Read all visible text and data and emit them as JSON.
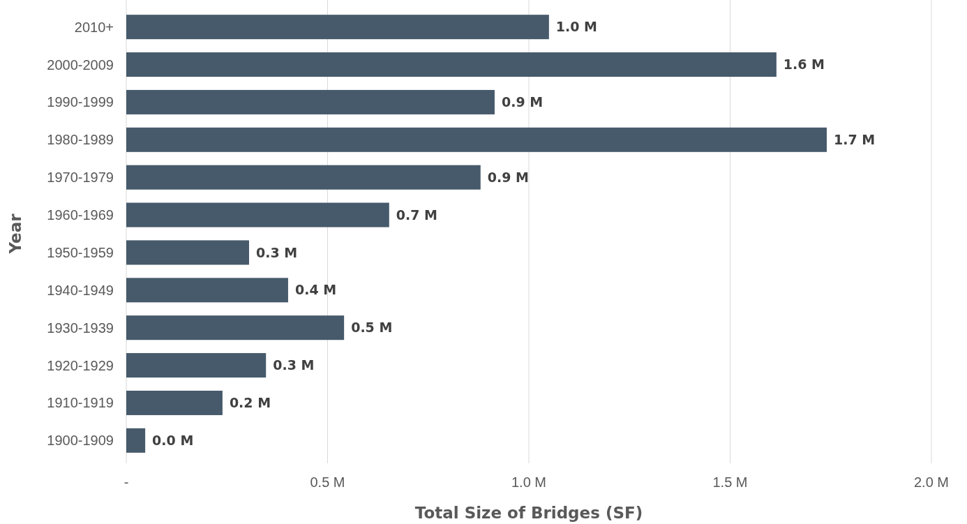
{
  "chart_data": {
    "type": "bar",
    "orientation": "horizontal",
    "xlabel": "Total Size of Bridges (SF)",
    "ylabel": "Year",
    "categories": [
      "2010+",
      "2000-2009",
      "1990-1999",
      "1980-1989",
      "1970-1979",
      "1960-1969",
      "1950-1959",
      "1940-1949",
      "1930-1939",
      "1920-1929",
      "1910-1919",
      "1900-1909"
    ],
    "values": [
      1.05,
      1.615,
      0.915,
      1.74,
      0.88,
      0.653,
      0.305,
      0.402,
      0.541,
      0.347,
      0.239,
      0.047
    ],
    "value_labels": [
      "1.0 M",
      "1.6 M",
      "0.9 M",
      "1.7 M",
      "0.9 M",
      "0.7 M",
      "0.3 M",
      "0.4 M",
      "0.5 M",
      "0.3 M",
      "0.2 M",
      "0.0 M"
    ],
    "color": "#465a6b",
    "xlim": [
      0,
      2
    ],
    "xticks": [
      {
        "value": 0,
        "label": "-"
      },
      {
        "value": 0.5,
        "label": "0.5 M"
      },
      {
        "value": 1,
        "label": "1.0 M"
      },
      {
        "value": 1.5,
        "label": "1.5 M"
      },
      {
        "value": 2,
        "label": "2.0 M"
      }
    ],
    "grid": "x"
  }
}
